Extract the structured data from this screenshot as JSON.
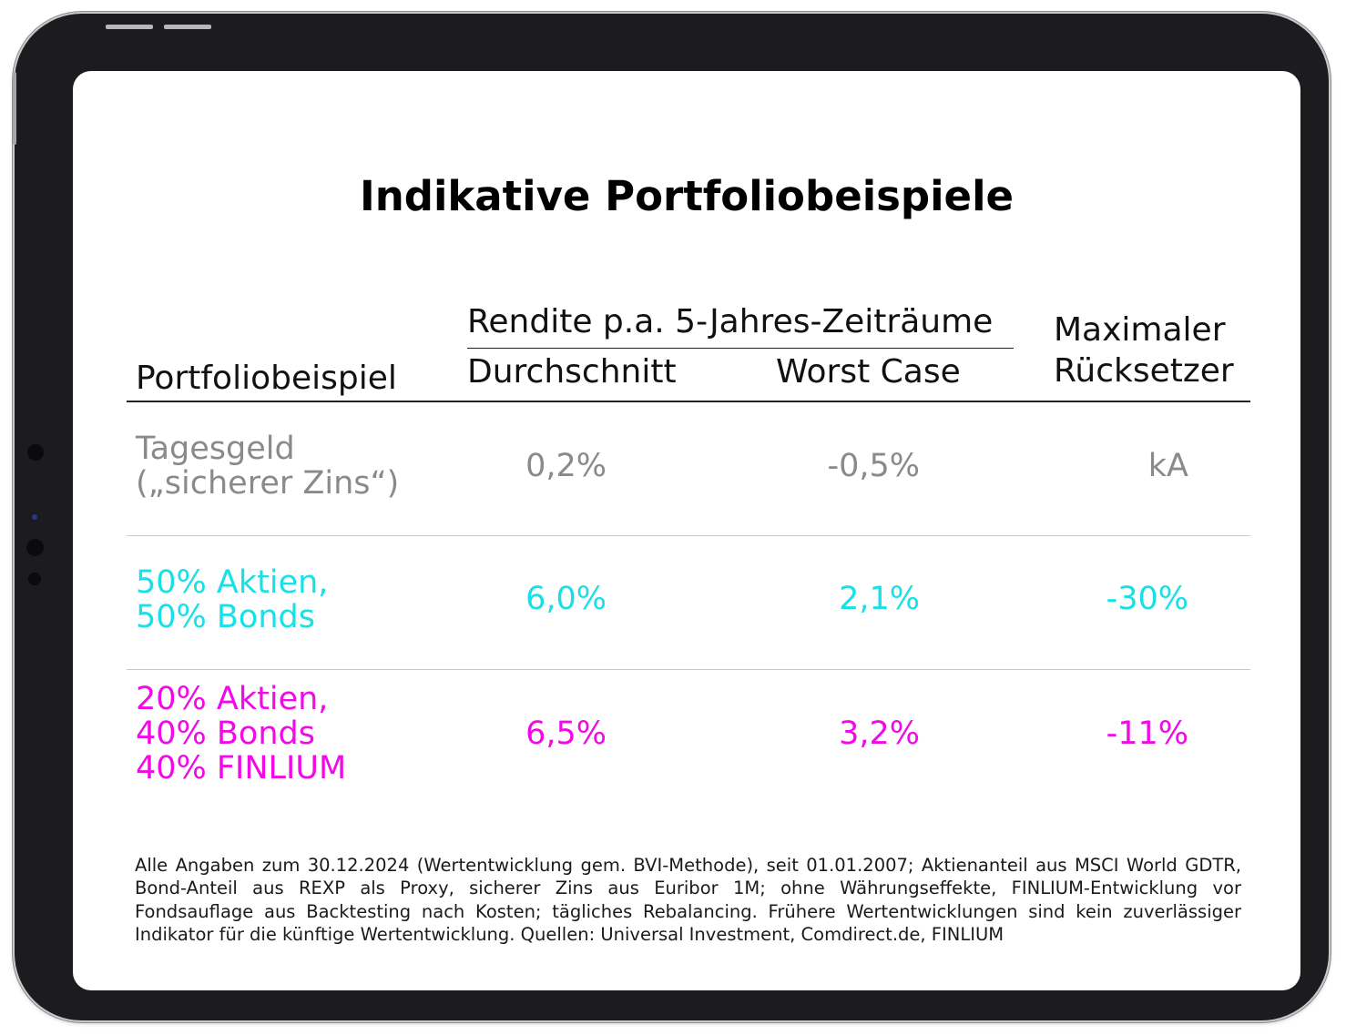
{
  "title": "Indikative Portfoliobeispiele",
  "header": {
    "col_portfolio": "Portfoliobeispiel",
    "group_label": "Rendite p.a. 5-Jahres-Zeiträume",
    "col_avg": "Durchschnitt",
    "col_worst": "Worst Case",
    "col_drawdown_line1": "Maximaler",
    "col_drawdown_line2": "Rücksetzer"
  },
  "rows": [
    {
      "label_lines": [
        "Tagesgeld",
        "(„sicherer Zins“)"
      ],
      "avg": "0,2%",
      "worst": "-0,5%",
      "drawdown": "kA",
      "color": "#8a8a8a"
    },
    {
      "label_lines": [
        "50% Aktien,",
        "50% Bonds"
      ],
      "avg": "6,0%",
      "worst": "2,1%",
      "drawdown": "-30%",
      "color": "#19e0e6"
    },
    {
      "label_lines": [
        "20% Aktien,",
        "40% Bonds",
        "40% FINLIUM"
      ],
      "avg": "6,5%",
      "worst": "3,2%",
      "drawdown": "-11%",
      "color": "#f00ae6"
    }
  ],
  "footnote": "Alle Angaben zum 30.12.2024 (Wertentwicklung gem. BVI-Methode), seit 01.01.2007; Aktienanteil aus MSCI World GDTR, Bond-Anteil aus REXP als Proxy, sicherer Zins aus Euribor 1M; ohne Währungseffekte, FINLIUM-Entwicklung vor Fondsauflage aus Backtesting nach Kosten; tägliches Rebalancing. Frühere Wertentwicklungen sind kein zuverlässiger Indikator für die künftige Wertentwicklung. Quellen: Universal Investment, Comdirect.de, FINLIUM"
}
